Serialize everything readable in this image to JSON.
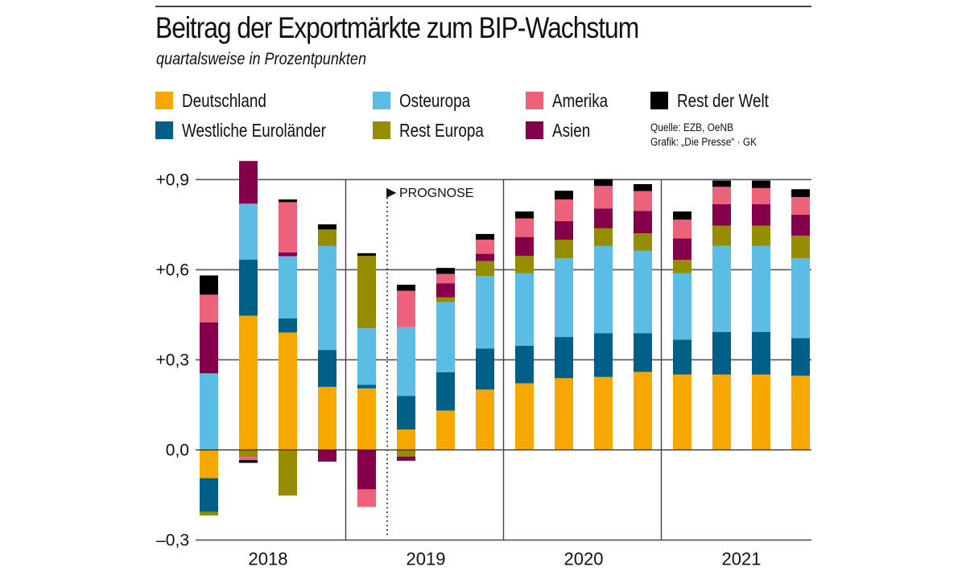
{
  "header": {
    "title": "Beitrag der Exportmärkte zum BIP-Wachstum",
    "subtitle": "quartalsweise in Prozentpunkten"
  },
  "source": {
    "line1": "Quelle: EZB, OeNB",
    "line2": "Grafik: „Die Presse“ · GK"
  },
  "legend": [
    {
      "key": "deutschland",
      "label": "Deutschland",
      "color": "#f7a800"
    },
    {
      "key": "westliche",
      "label": "Westliche Euroländer",
      "color": "#005f87"
    },
    {
      "key": "osteuropa",
      "label": "Osteuropa",
      "color": "#5bbde4"
    },
    {
      "key": "resteuropa",
      "label": "Rest Europa",
      "color": "#968c00"
    },
    {
      "key": "amerika",
      "label": "Amerika",
      "color": "#ec627a"
    },
    {
      "key": "asien",
      "label": "Asien",
      "color": "#84004a"
    },
    {
      "key": "restwelt",
      "label": "Rest der Welt",
      "color": "#000000"
    }
  ],
  "chart_data": {
    "type": "bar",
    "stacked": true,
    "title": "Beitrag der Exportmärkte zum BIP-Wachstum",
    "subtitle": "quartalsweise in Prozentpunkten",
    "xlabel": "",
    "ylabel": "",
    "ylim": [
      -0.3,
      0.9
    ],
    "yticks": [
      -0.3,
      0.0,
      0.3,
      0.6,
      0.9
    ],
    "ytick_labels": [
      "–0,3",
      "0,0",
      "+0,3",
      "+0,6",
      "+0,9"
    ],
    "grid": true,
    "legend_position": "top",
    "groups": [
      "2018",
      "2019",
      "2020",
      "2021"
    ],
    "categories": [
      "2018 Q1",
      "2018 Q2",
      "2018 Q3",
      "2018 Q4",
      "2019 Q1",
      "2019 Q2",
      "2019 Q3",
      "2019 Q4",
      "2020 Q1",
      "2020 Q2",
      "2020 Q3",
      "2020 Q4",
      "2021 Q1",
      "2021 Q2",
      "2021 Q3",
      "2021 Q4"
    ],
    "annotation": {
      "text": "PROGNOSE",
      "marker": "▶",
      "after_category": "2019 Q1",
      "style": "dotted-line"
    },
    "series": [
      {
        "name": "Deutschland",
        "color": "#f7a800",
        "values": [
          -0.094,
          0.447,
          0.391,
          0.21,
          0.205,
          0.068,
          0.131,
          0.201,
          0.222,
          0.239,
          0.243,
          0.26,
          0.251,
          0.251,
          0.251,
          0.247
        ]
      },
      {
        "name": "Westliche Euroländer",
        "color": "#005f87",
        "values": [
          -0.112,
          0.187,
          0.047,
          0.123,
          0.012,
          0.112,
          0.128,
          0.137,
          0.125,
          0.137,
          0.146,
          0.129,
          0.116,
          0.142,
          0.142,
          0.125
        ]
      },
      {
        "name": "Rest Europa",
        "color": "#968c00",
        "values": [
          -0.012,
          -0.023,
          -0.152,
          0.055,
          0.241,
          -0.022,
          0.016,
          0.05,
          0.058,
          0.062,
          0.059,
          0.057,
          0.045,
          0.067,
          0.067,
          0.075
        ]
      },
      {
        "name": "Osteuropa",
        "color": "#5bbde4",
        "values": [
          0.255,
          0.186,
          0.207,
          0.346,
          0.188,
          0.229,
          0.233,
          0.241,
          0.241,
          0.262,
          0.29,
          0.275,
          0.221,
          0.287,
          0.287,
          0.266
        ]
      },
      {
        "name": "Asien",
        "color": "#84004a",
        "values": [
          0.17,
          0.142,
          0.013,
          -0.039,
          -0.131,
          -0.014,
          0.047,
          0.024,
          0.063,
          0.062,
          0.066,
          0.075,
          0.071,
          0.071,
          0.071,
          0.07
        ]
      },
      {
        "name": "Amerika",
        "color": "#ec627a",
        "values": [
          0.092,
          -0.011,
          0.167,
          0.0,
          -0.059,
          0.121,
          0.031,
          0.047,
          0.062,
          0.072,
          0.075,
          0.066,
          0.063,
          0.058,
          0.054,
          0.059
        ]
      },
      {
        "name": "Rest der Welt",
        "color": "#000000",
        "values": [
          0.064,
          -0.009,
          0.009,
          0.017,
          0.009,
          0.02,
          0.02,
          0.019,
          0.023,
          0.029,
          0.023,
          0.023,
          0.027,
          0.021,
          0.025,
          0.026
        ]
      }
    ],
    "positive_stack_order": [
      "Deutschland",
      "Westliche Euroländer",
      "Osteuropa",
      "Rest Europa",
      "Asien",
      "Amerika",
      "Rest der Welt"
    ],
    "negative_stack_order": [
      "Deutschland",
      "Westliche Euroländer",
      "Rest Europa",
      "Asien",
      "Amerika",
      "Rest der Welt"
    ]
  }
}
